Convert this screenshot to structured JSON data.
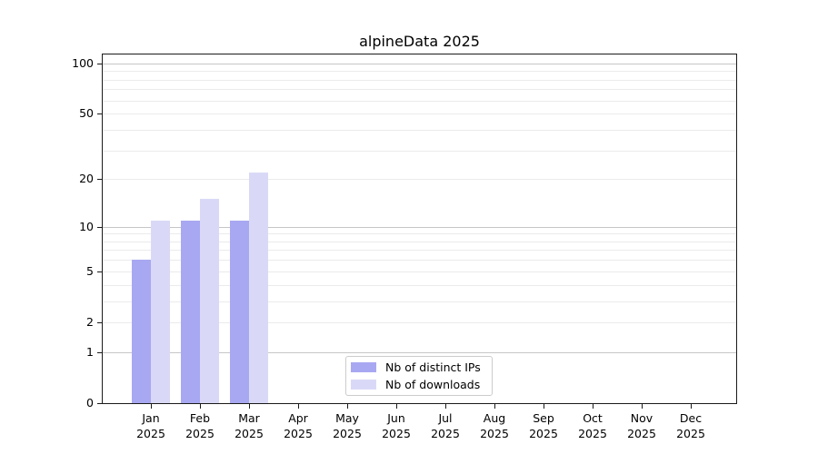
{
  "chart_data": {
    "type": "bar",
    "title": "alpineData 2025",
    "categories": [
      "Jan",
      "Feb",
      "Mar",
      "Apr",
      "May",
      "Jun",
      "Jul",
      "Aug",
      "Sep",
      "Oct",
      "Nov",
      "Dec"
    ],
    "year_label": "2025",
    "series": [
      {
        "name": "Nb of distinct IPs",
        "color": "#a8a8f2",
        "values": [
          6,
          11,
          11,
          0,
          0,
          0,
          0,
          0,
          0,
          0,
          0,
          0
        ]
      },
      {
        "name": "Nb of downloads",
        "color": "#d9d9f7",
        "values": [
          11,
          15,
          22,
          0,
          0,
          0,
          0,
          0,
          0,
          0,
          0,
          0
        ]
      }
    ],
    "y_axis": {
      "scale": "log1p",
      "ylim": [
        0,
        113
      ],
      "tick_values": [
        0,
        1,
        2,
        5,
        10,
        20,
        50,
        100
      ],
      "tick_labels": [
        "0",
        "1",
        "2",
        "5",
        "10",
        "20",
        "50",
        "100"
      ],
      "major_grid_values": [
        1,
        10,
        100
      ],
      "minor_grid_values": [
        2,
        3,
        4,
        5,
        6,
        7,
        8,
        9,
        20,
        30,
        40,
        50,
        60,
        70,
        80,
        90
      ],
      "grid": true
    },
    "legend": {
      "position": "lower-center",
      "entries": [
        "Nb of distinct IPs",
        "Nb of downloads"
      ]
    },
    "colors": {
      "bar_distinct_ips": "#a8a8f2",
      "bar_downloads": "#d9d9f7",
      "major_grid": "#c6c6c6",
      "minor_grid": "#ebebeb",
      "axis_line": "#1a1a1a",
      "text": "#000000",
      "legend_border": "#cccccc"
    }
  }
}
